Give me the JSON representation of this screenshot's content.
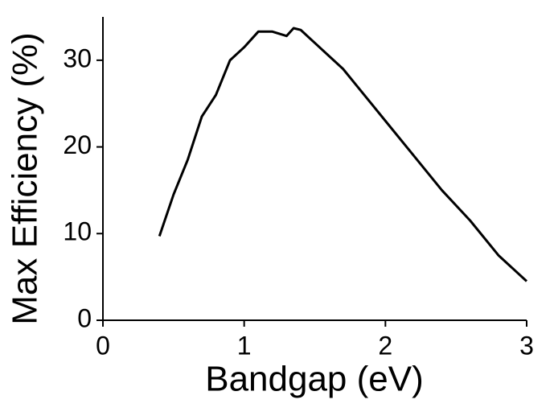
{
  "chart_data": {
    "type": "line",
    "x_label": "Bandgap (eV)",
    "y_label": "Max Efficiency (%)",
    "x": [
      0.4,
      0.5,
      0.6,
      0.7,
      0.8,
      0.9,
      1.0,
      1.1,
      1.2,
      1.3,
      1.35,
      1.4,
      1.5,
      1.6,
      1.7,
      1.8,
      1.9,
      2.0,
      2.2,
      2.4,
      2.6,
      2.8,
      3.0
    ],
    "series": [
      {
        "color": "#000000",
        "values": [
          9.7,
          14.5,
          18.5,
          23.5,
          26,
          30,
          31.5,
          33.3,
          33.3,
          32.8,
          33.7,
          33.5,
          32,
          30.5,
          29,
          27,
          25,
          23,
          19,
          15,
          11.5,
          7.5,
          4.5
        ]
      }
    ],
    "xlim": [
      0,
      3
    ],
    "xticks": [
      0,
      1,
      2,
      3
    ],
    "ylim": [
      0,
      35
    ],
    "yticks": [
      0,
      10,
      20,
      30
    ],
    "grid": false
  }
}
